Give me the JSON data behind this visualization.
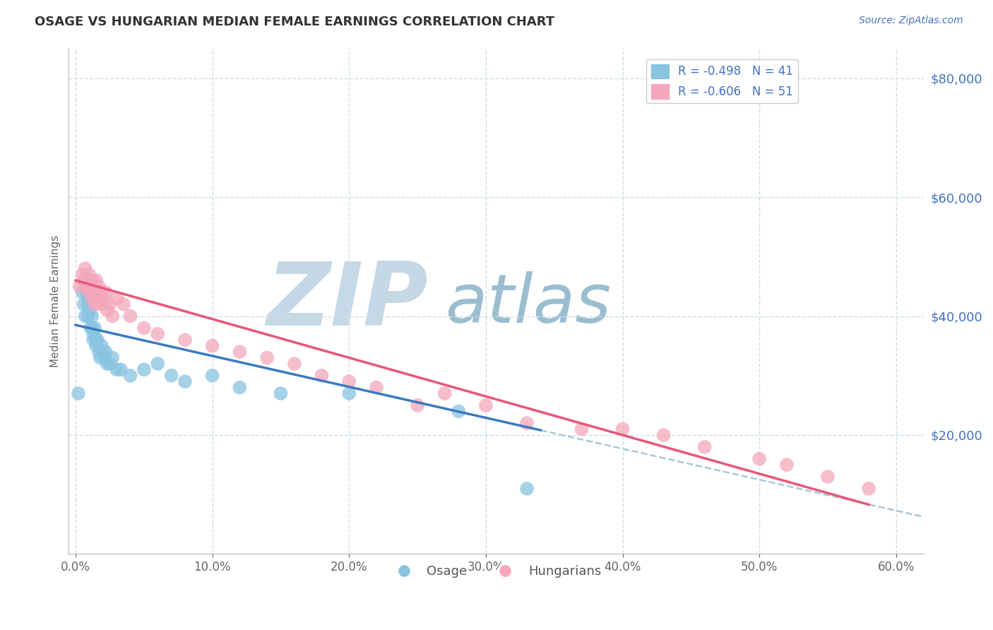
{
  "title": "OSAGE VS HUNGARIAN MEDIAN FEMALE EARNINGS CORRELATION CHART",
  "source": "Source: ZipAtlas.com",
  "ylabel_label": "Median Female Earnings",
  "xlim": [
    -0.005,
    0.62
  ],
  "ylim": [
    0,
    85000
  ],
  "xtick_values": [
    0.0,
    0.1,
    0.2,
    0.3,
    0.4,
    0.5,
    0.6
  ],
  "ytick_values": [
    0,
    20000,
    40000,
    60000,
    80000
  ],
  "legend_entry1": "R = -0.498   N = 41",
  "legend_entry2": "R = -0.606   N = 51",
  "osage_color": "#89c4e1",
  "hungarian_color": "#f4a7bc",
  "osage_line_color": "#3a7abf",
  "hungarian_line_color": "#e8567a",
  "dashed_line_color": "#a8c8d8",
  "watermark_zip_color": "#c5d8e6",
  "watermark_atlas_color": "#9bbdd0",
  "title_color": "#333333",
  "source_color": "#4472c4",
  "ytick_color": "#4472c4",
  "xtick_color": "#666666",
  "ylabel_color": "#666666",
  "grid_color": "#d0dde6",
  "legend_text_color": "#4472c4",
  "bottom_legend_color": "#555555",
  "osage_x": [
    0.002,
    0.005,
    0.006,
    0.007,
    0.008,
    0.008,
    0.009,
    0.009,
    0.01,
    0.01,
    0.011,
    0.012,
    0.012,
    0.013,
    0.013,
    0.014,
    0.015,
    0.015,
    0.016,
    0.017,
    0.018,
    0.019,
    0.02,
    0.021,
    0.022,
    0.023,
    0.025,
    0.027,
    0.03,
    0.033,
    0.04,
    0.05,
    0.06,
    0.07,
    0.08,
    0.1,
    0.12,
    0.15,
    0.2,
    0.28,
    0.33
  ],
  "osage_y": [
    27000,
    44000,
    42000,
    40000,
    46000,
    44000,
    42000,
    40000,
    43000,
    41000,
    38000,
    40000,
    38000,
    37000,
    36000,
    38000,
    36000,
    35000,
    36000,
    34000,
    33000,
    35000,
    34000,
    33000,
    34000,
    32000,
    32000,
    33000,
    31000,
    31000,
    30000,
    31000,
    32000,
    30000,
    29000,
    30000,
    28000,
    27000,
    27000,
    24000,
    11000
  ],
  "hungarian_x": [
    0.003,
    0.005,
    0.006,
    0.007,
    0.008,
    0.009,
    0.01,
    0.01,
    0.011,
    0.012,
    0.012,
    0.013,
    0.013,
    0.014,
    0.015,
    0.016,
    0.016,
    0.017,
    0.018,
    0.019,
    0.02,
    0.021,
    0.022,
    0.023,
    0.025,
    0.027,
    0.03,
    0.035,
    0.04,
    0.05,
    0.06,
    0.08,
    0.1,
    0.12,
    0.14,
    0.16,
    0.18,
    0.2,
    0.22,
    0.25,
    0.27,
    0.3,
    0.33,
    0.37,
    0.4,
    0.43,
    0.46,
    0.5,
    0.52,
    0.55,
    0.58
  ],
  "hungarian_y": [
    45000,
    47000,
    46000,
    48000,
    45000,
    46000,
    47000,
    44000,
    45000,
    46000,
    43000,
    44000,
    45000,
    42000,
    46000,
    44000,
    43000,
    45000,
    42000,
    44000,
    43000,
    42000,
    44000,
    41000,
    42000,
    40000,
    43000,
    42000,
    40000,
    38000,
    37000,
    36000,
    35000,
    34000,
    33000,
    32000,
    30000,
    29000,
    28000,
    25000,
    27000,
    25000,
    22000,
    21000,
    21000,
    20000,
    18000,
    16000,
    15000,
    13000,
    11000
  ],
  "osage_intercept_override": 38500,
  "osage_slope_override": -52000,
  "hungarian_intercept_override": 46000,
  "hungarian_slope_override": -65000
}
